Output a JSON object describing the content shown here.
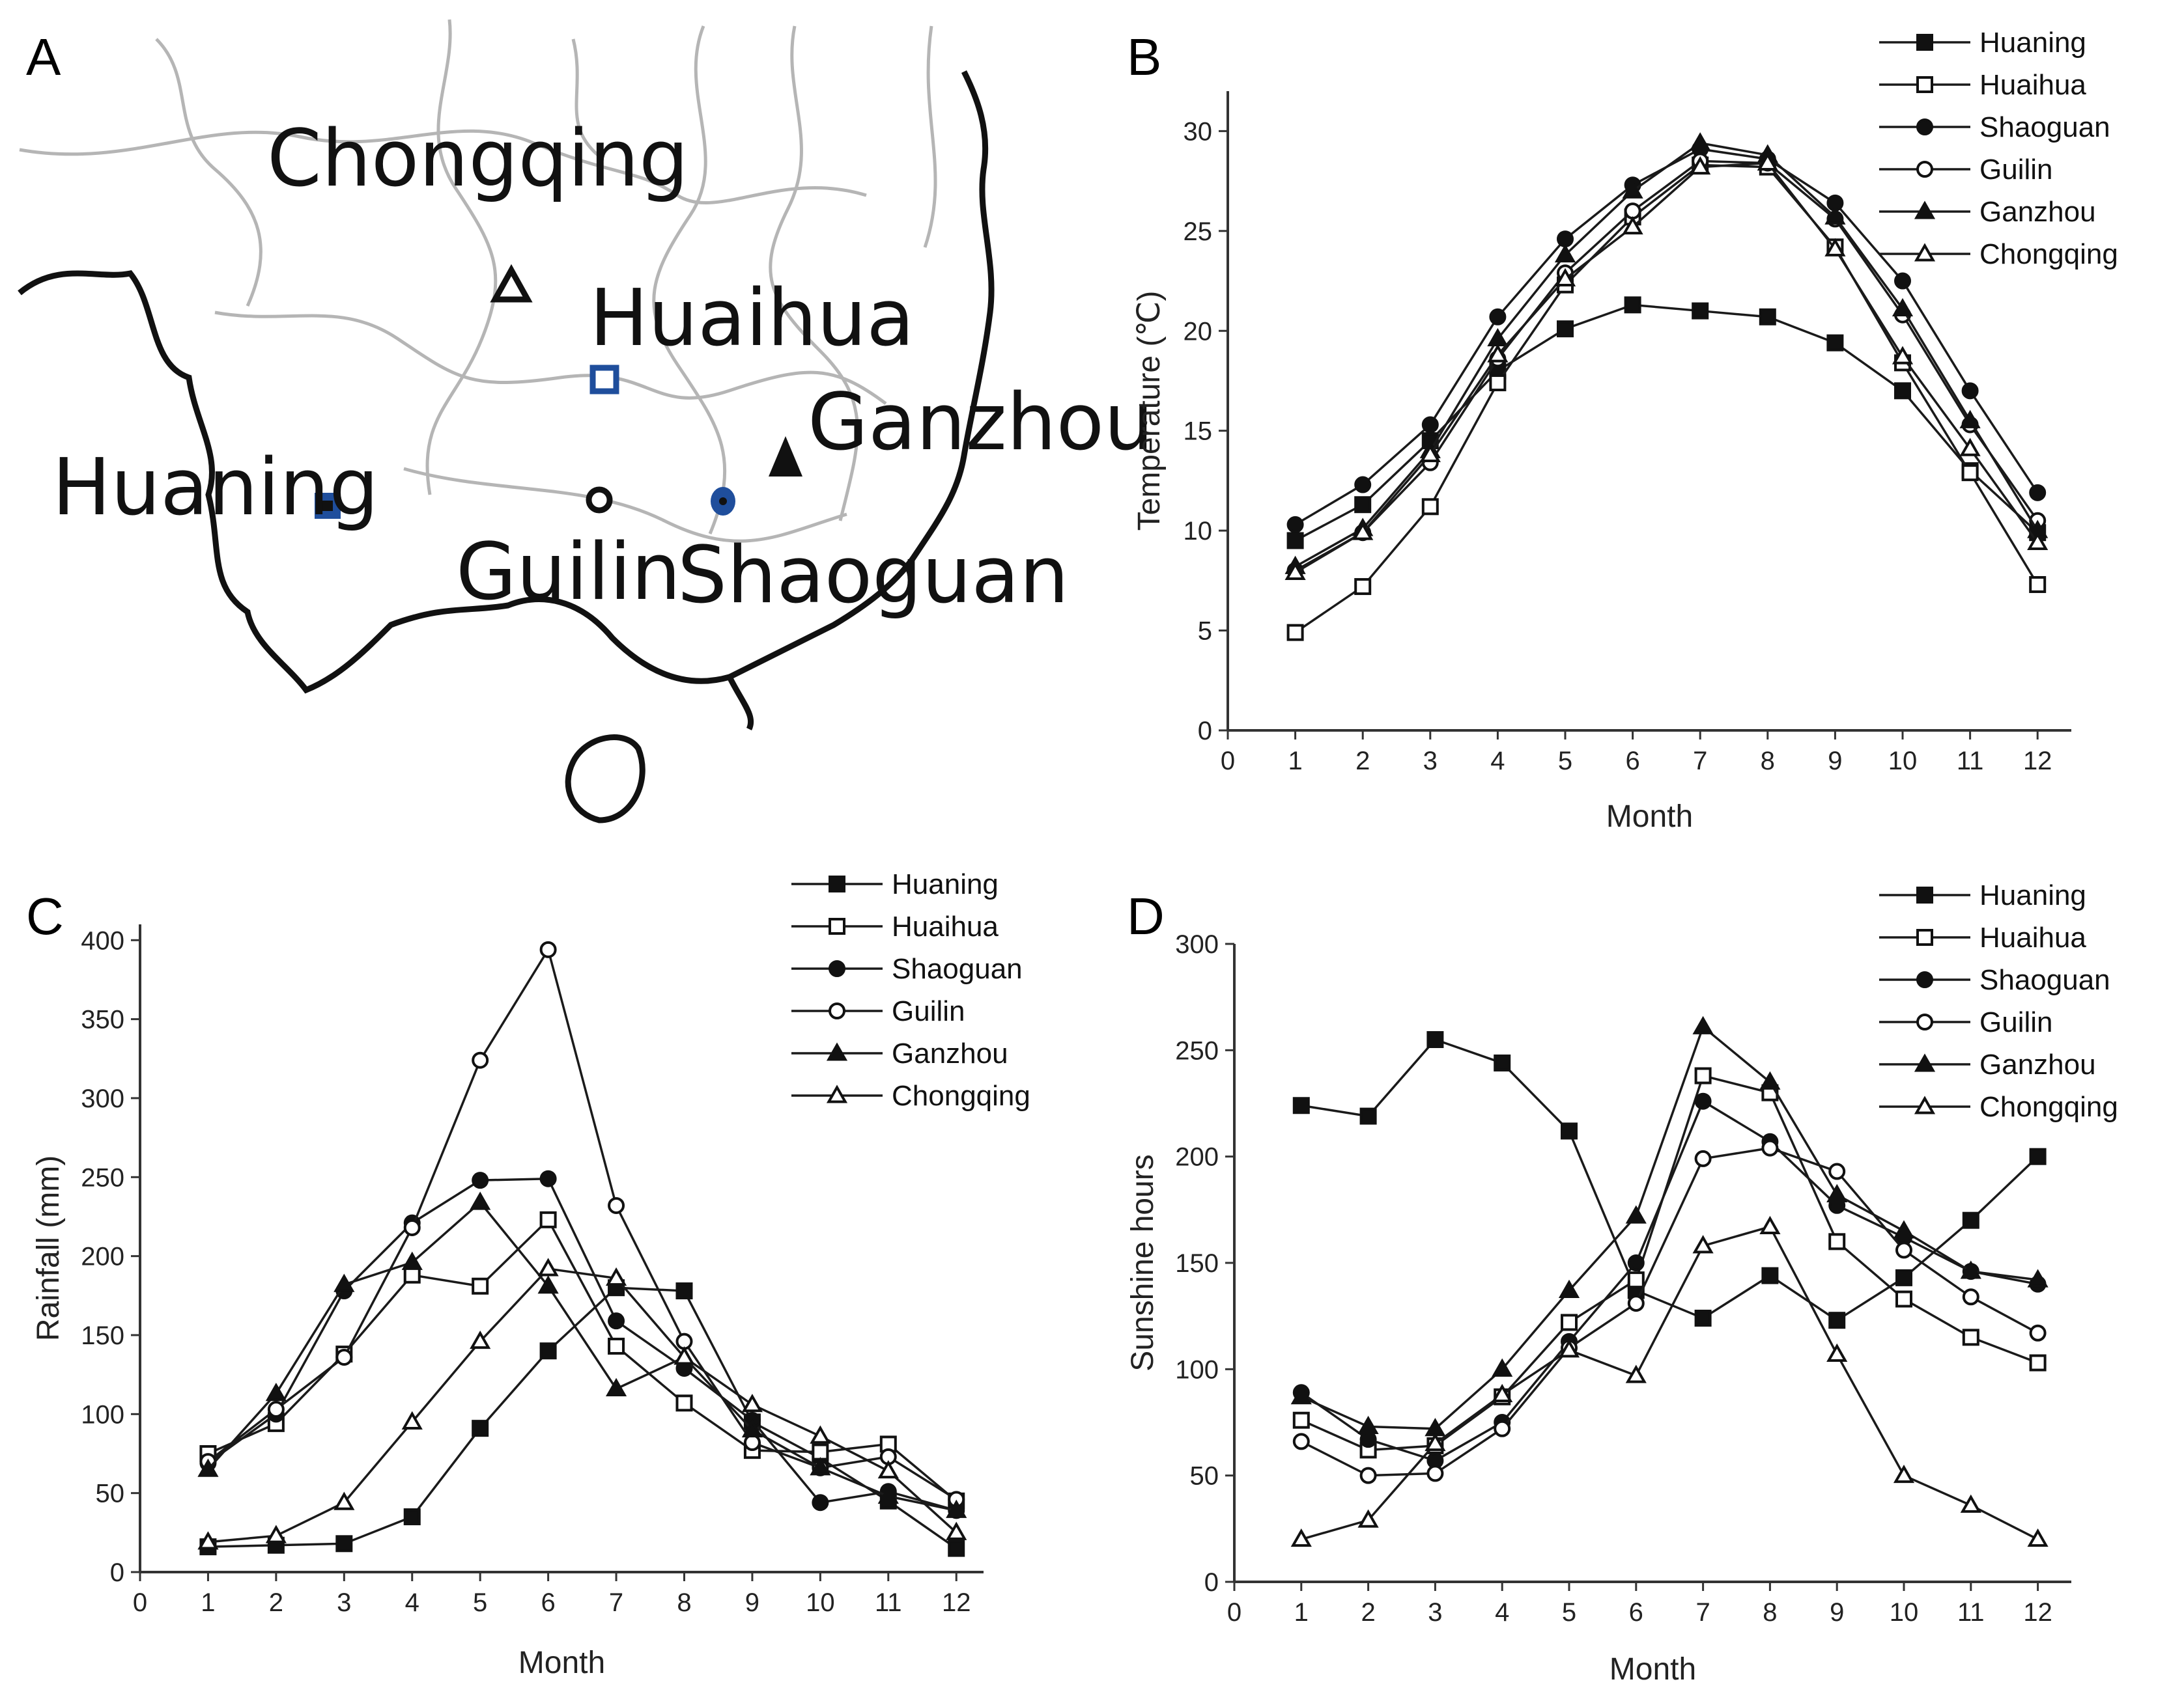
{
  "panel_letters": {
    "a": "A",
    "b": "B",
    "c": "C",
    "d": "D"
  },
  "map": {
    "cities": [
      {
        "name": "Chongqing",
        "marker": "open-triangle",
        "color": "#111111"
      },
      {
        "name": "Huaihua",
        "marker": "open-square",
        "color": "#1f4e9c"
      },
      {
        "name": "Huaning",
        "marker": "filled-square",
        "color": "#1f4e9c"
      },
      {
        "name": "Guilin",
        "marker": "open-circle",
        "color": "#111111"
      },
      {
        "name": "Shaoguan",
        "marker": "filled-circle",
        "color": "#1f4e9c"
      },
      {
        "name": "Ganzhou",
        "marker": "filled-triangle",
        "color": "#111111"
      }
    ]
  },
  "chart_data": [
    {
      "panel": "B",
      "type": "line",
      "title": "",
      "xlabel": "Month",
      "ylabel": "Temperature (℃)",
      "xlim": [
        0,
        12.5
      ],
      "ylim": [
        0,
        32
      ],
      "xticks": [
        0,
        1,
        2,
        3,
        4,
        5,
        6,
        7,
        8,
        9,
        10,
        11,
        12
      ],
      "yticks": [
        0,
        5,
        10,
        15,
        20,
        25,
        30
      ],
      "legend_position": "top-right",
      "x": [
        1,
        2,
        3,
        4,
        5,
        6,
        7,
        8,
        9,
        10,
        11,
        12
      ],
      "series": [
        {
          "name": "Huaning",
          "marker": "filled-square",
          "values": [
            9.5,
            11.3,
            14.5,
            18.0,
            20.1,
            21.3,
            21.0,
            20.7,
            19.4,
            17.0,
            13.0,
            9.9
          ]
        },
        {
          "name": "Huaihua",
          "marker": "open-square",
          "values": [
            4.9,
            7.2,
            11.2,
            17.4,
            22.3,
            25.7,
            28.3,
            28.2,
            24.2,
            18.4,
            12.9,
            7.3
          ]
        },
        {
          "name": "Shaoguan",
          "marker": "filled-circle",
          "values": [
            10.3,
            12.3,
            15.3,
            20.7,
            24.6,
            27.3,
            29.1,
            28.6,
            26.4,
            22.5,
            17.0,
            11.9
          ]
        },
        {
          "name": "Guilin",
          "marker": "open-circle",
          "values": [
            8.0,
            9.9,
            13.4,
            18.6,
            22.9,
            26.0,
            28.5,
            28.4,
            25.6,
            20.8,
            15.3,
            10.5
          ]
        },
        {
          "name": "Ganzhou",
          "marker": "filled-triangle",
          "values": [
            8.2,
            10.1,
            14.0,
            19.6,
            23.8,
            27.0,
            29.4,
            28.8,
            25.7,
            21.1,
            15.5,
            10.0
          ]
        },
        {
          "name": "Chongqing",
          "marker": "open-triangle",
          "values": [
            7.9,
            9.9,
            13.8,
            18.8,
            22.6,
            25.2,
            28.2,
            28.4,
            24.1,
            18.7,
            14.1,
            9.4
          ]
        }
      ]
    },
    {
      "panel": "C",
      "type": "line",
      "title": "",
      "xlabel": "Month",
      "ylabel": "Rainfall (mm)",
      "xlim": [
        0,
        12.4
      ],
      "ylim": [
        0,
        410
      ],
      "xticks": [
        0,
        1,
        2,
        3,
        4,
        5,
        6,
        7,
        8,
        9,
        10,
        11,
        12
      ],
      "yticks": [
        0,
        50,
        100,
        150,
        200,
        250,
        300,
        350,
        400
      ],
      "legend_position": "top-right",
      "x": [
        1,
        2,
        3,
        4,
        5,
        6,
        7,
        8,
        9,
        10,
        11,
        12
      ],
      "series": [
        {
          "name": "Huaning",
          "marker": "filled-square",
          "values": [
            16,
            17,
            18,
            35,
            91,
            140,
            180,
            178,
            95,
            72,
            45,
            15
          ]
        },
        {
          "name": "Huaihua",
          "marker": "open-square",
          "values": [
            75,
            94,
            138,
            188,
            181,
            223,
            143,
            107,
            77,
            76,
            81,
            45
          ]
        },
        {
          "name": "Shaoguan",
          "marker": "filled-circle",
          "values": [
            69,
            100,
            178,
            221,
            248,
            249,
            159,
            129,
            96,
            44,
            51,
            39
          ]
        },
        {
          "name": "Guilin",
          "marker": "open-circle",
          "values": [
            70,
            103,
            136,
            218,
            324,
            394,
            232,
            146,
            82,
            66,
            73,
            46
          ]
        },
        {
          "name": "Ganzhou",
          "marker": "filled-triangle",
          "values": [
            65,
            113,
            182,
            196,
            234,
            181,
            116,
            136,
            90,
            66,
            48,
            39
          ]
        },
        {
          "name": "Chongqing",
          "marker": "open-triangle",
          "values": [
            19,
            23,
            44,
            95,
            146,
            192,
            186,
            136,
            106,
            86,
            64,
            25
          ]
        }
      ]
    },
    {
      "panel": "D",
      "type": "line",
      "title": "",
      "xlabel": "Month",
      "ylabel": "Sunshine hours",
      "xlim": [
        0,
        12.5
      ],
      "ylim": [
        0,
        300
      ],
      "xticks": [
        0,
        1,
        2,
        3,
        4,
        5,
        6,
        7,
        8,
        9,
        10,
        11,
        12
      ],
      "yticks": [
        0,
        50,
        100,
        150,
        200,
        250,
        300
      ],
      "legend_position": "top-right",
      "x": [
        1,
        2,
        3,
        4,
        5,
        6,
        7,
        8,
        9,
        10,
        11,
        12
      ],
      "series": [
        {
          "name": "Huaning",
          "marker": "filled-square",
          "values": [
            224,
            219,
            255,
            244,
            212,
            137,
            124,
            144,
            123,
            143,
            170,
            200
          ]
        },
        {
          "name": "Huaihua",
          "marker": "open-square",
          "values": [
            76,
            62,
            64,
            87,
            122,
            142,
            238,
            230,
            160,
            133,
            115,
            103
          ]
        },
        {
          "name": "Shaoguan",
          "marker": "filled-circle",
          "values": [
            89,
            67,
            57,
            75,
            113,
            150,
            226,
            207,
            177,
            162,
            146,
            140
          ]
        },
        {
          "name": "Guilin",
          "marker": "open-circle",
          "values": [
            66,
            50,
            51,
            72,
            110,
            131,
            199,
            204,
            193,
            156,
            134,
            117
          ]
        },
        {
          "name": "Ganzhou",
          "marker": "filled-triangle",
          "values": [
            87,
            73,
            72,
            100,
            137,
            172,
            261,
            235,
            182,
            165,
            146,
            142
          ]
        },
        {
          "name": "Chongqing",
          "marker": "open-triangle",
          "values": [
            20,
            29,
            65,
            88,
            109,
            97,
            158,
            167,
            107,
            50,
            36,
            20
          ]
        }
      ]
    }
  ]
}
